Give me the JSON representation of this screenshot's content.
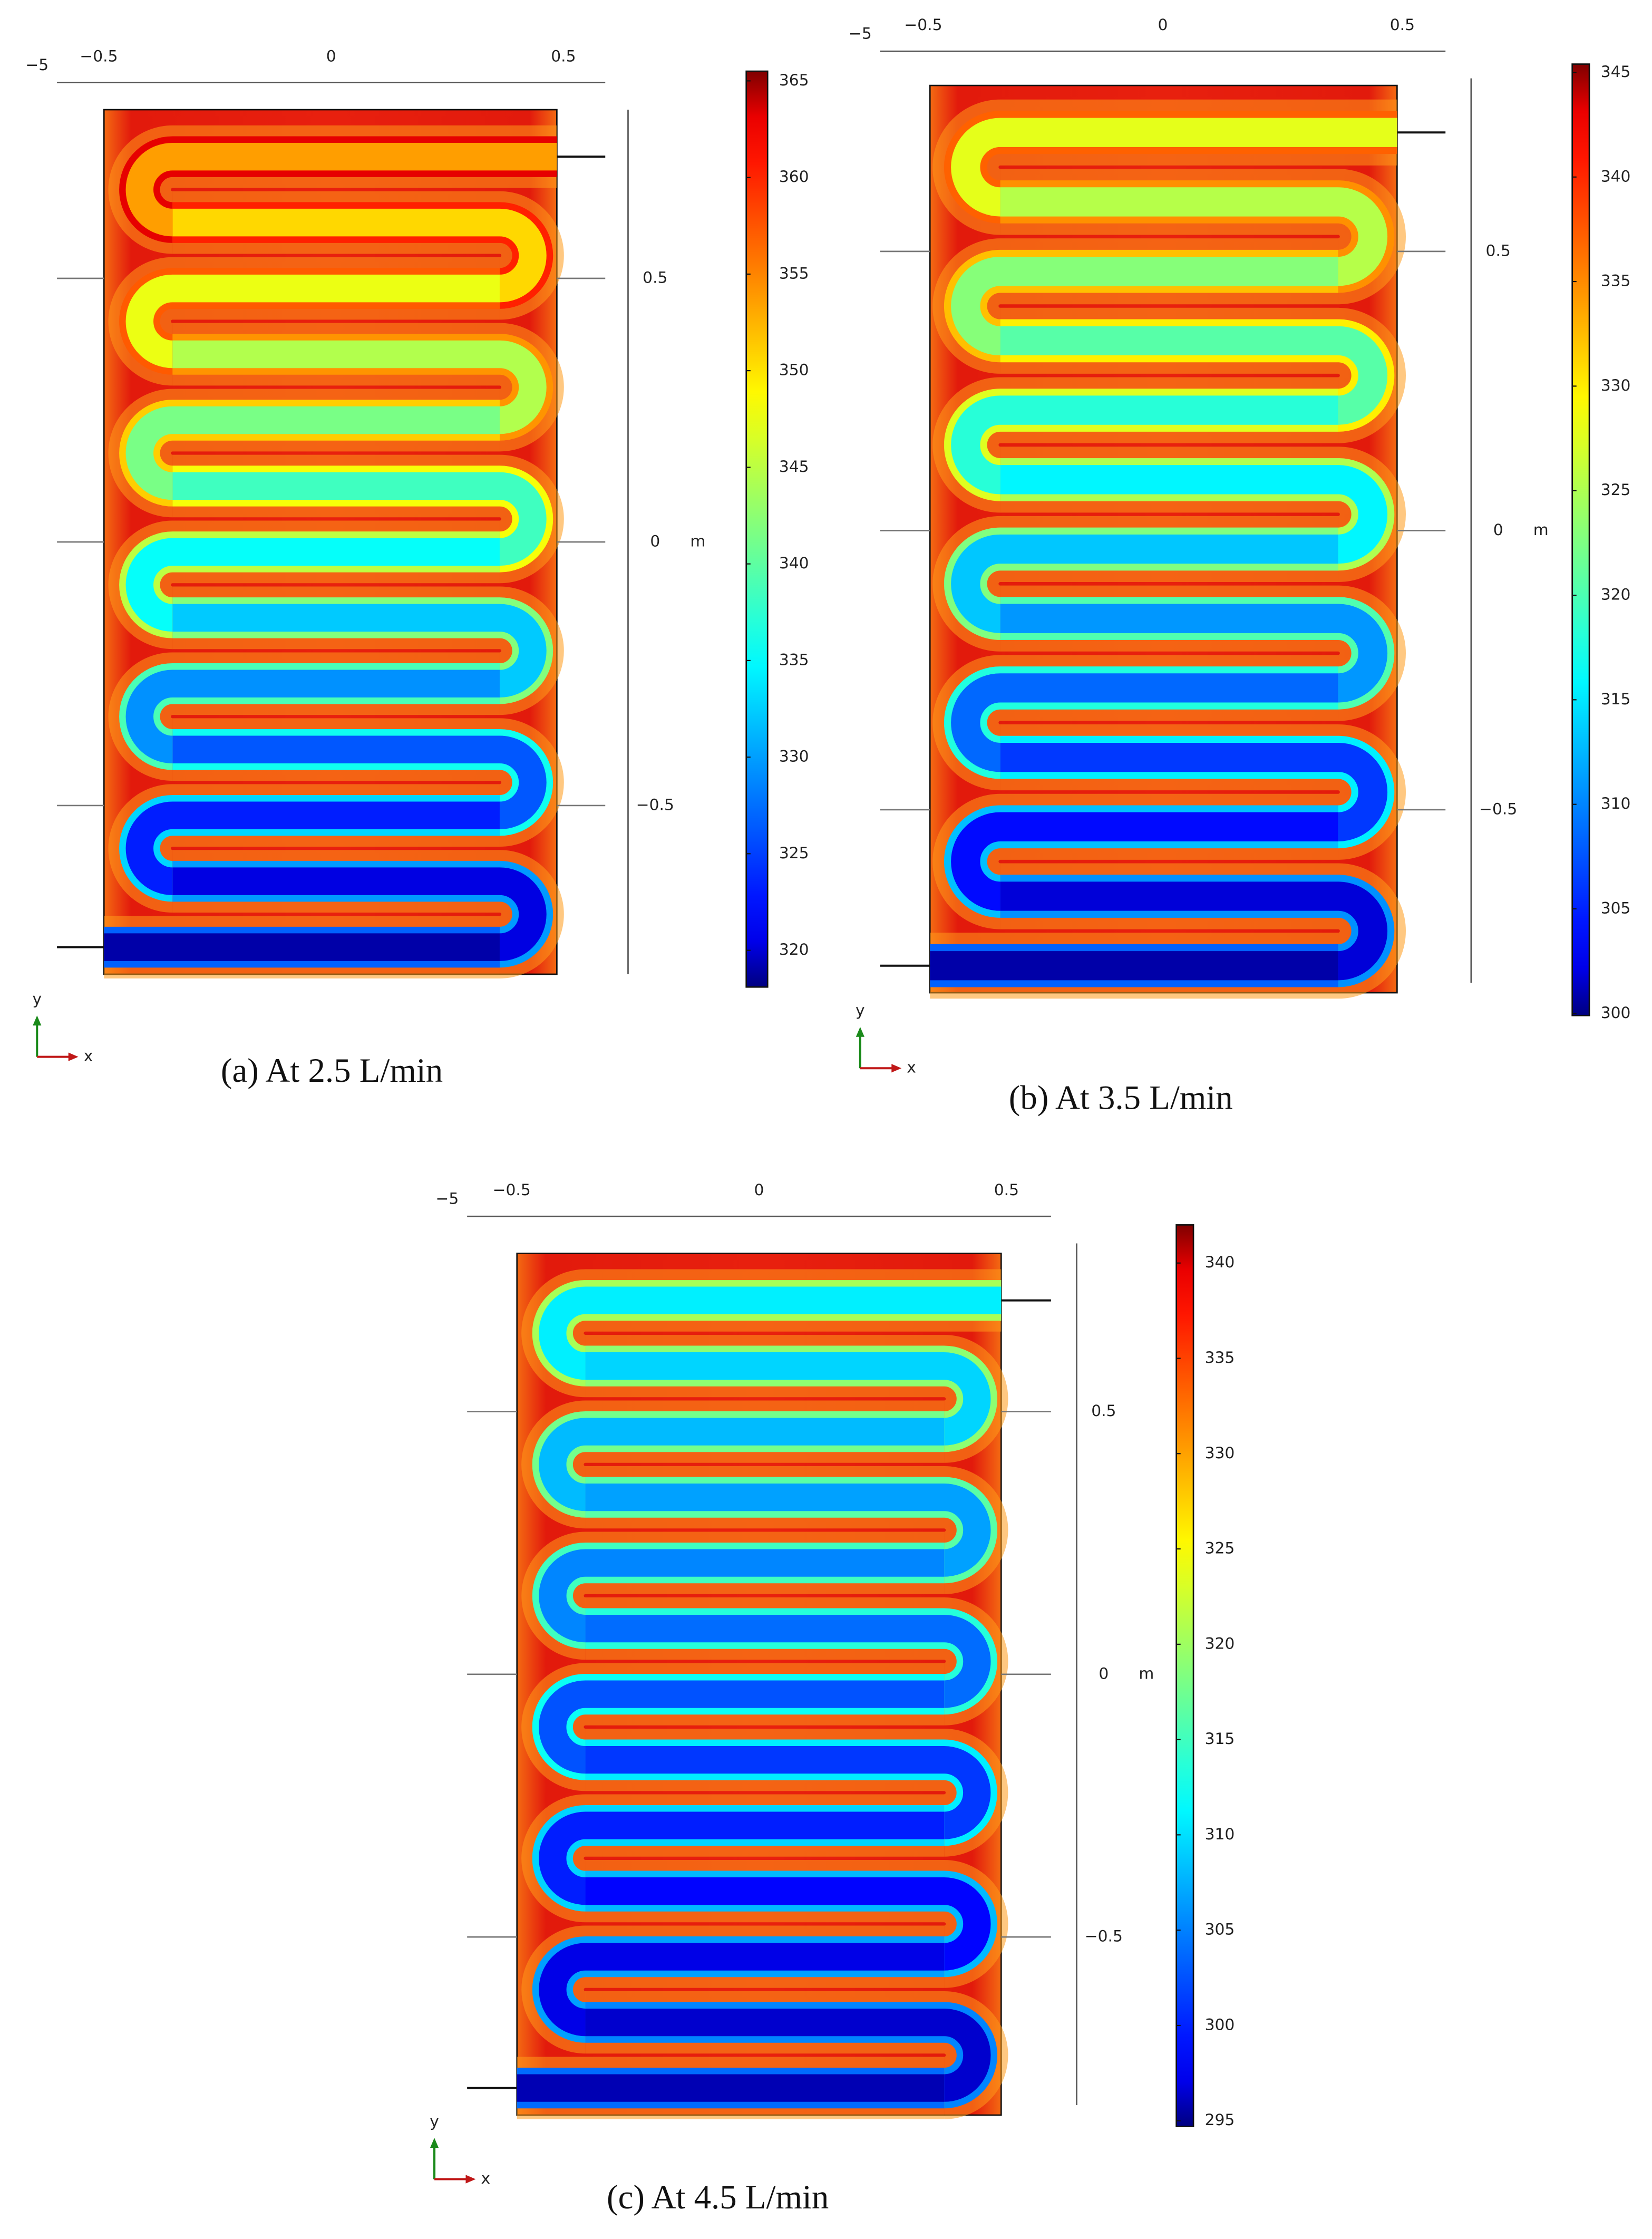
{
  "chart_data": [
    {
      "type": "heatmap",
      "caption": "(a) At 2.5 L/min",
      "offset_label": "−5",
      "unit_label": "m",
      "x_label": "x",
      "y_label": "y",
      "xlim": [
        -0.59,
        0.59
      ],
      "xticks": [
        {
          "value": -0.5,
          "label": "−0.5"
        },
        0,
        0.5
      ],
      "ylim": [
        -0.82,
        0.82
      ],
      "yticks": [
        {
          "value": -0.5,
          "label": "−0.5"
        },
        0,
        0.5
      ],
      "clim": [
        318.1,
        365.5
      ],
      "cticks": [
        320,
        325,
        330,
        335,
        340,
        345,
        350,
        355,
        360,
        365
      ]
    },
    {
      "type": "heatmap",
      "caption": "(b) At 3.5 L/min",
      "offset_label": "−5",
      "unit_label": "m",
      "x_label": "x",
      "y_label": "y",
      "xlim": [
        -0.59,
        0.59
      ],
      "xticks": [
        {
          "value": -0.5,
          "label": "−0.5"
        },
        0,
        0.5
      ],
      "ylim": [
        -0.81,
        0.81
      ],
      "yticks": [
        {
          "value": -0.5,
          "label": "−0.5"
        },
        0,
        0.5
      ],
      "clim": [
        299.9,
        345.4
      ],
      "cticks": [
        300,
        305,
        310,
        315,
        320,
        325,
        330,
        335,
        340,
        345
      ]
    },
    {
      "type": "heatmap",
      "caption": "(c) At 4.5 L/min",
      "offset_label": "−5",
      "unit_label": "m",
      "x_label": "x",
      "y_label": "y",
      "xlim": [
        -0.59,
        0.59
      ],
      "xticks": [
        {
          "value": -0.5,
          "label": "−0.5"
        },
        0,
        0.5
      ],
      "ylim": [
        -0.82,
        0.82
      ],
      "yticks": [
        {
          "value": -0.5,
          "label": "−0.5"
        },
        0,
        0.5
      ],
      "clim": [
        294.7,
        342.0
      ],
      "cticks": [
        295,
        300,
        305,
        310,
        315,
        320,
        325,
        330,
        335,
        340
      ]
    }
  ]
}
